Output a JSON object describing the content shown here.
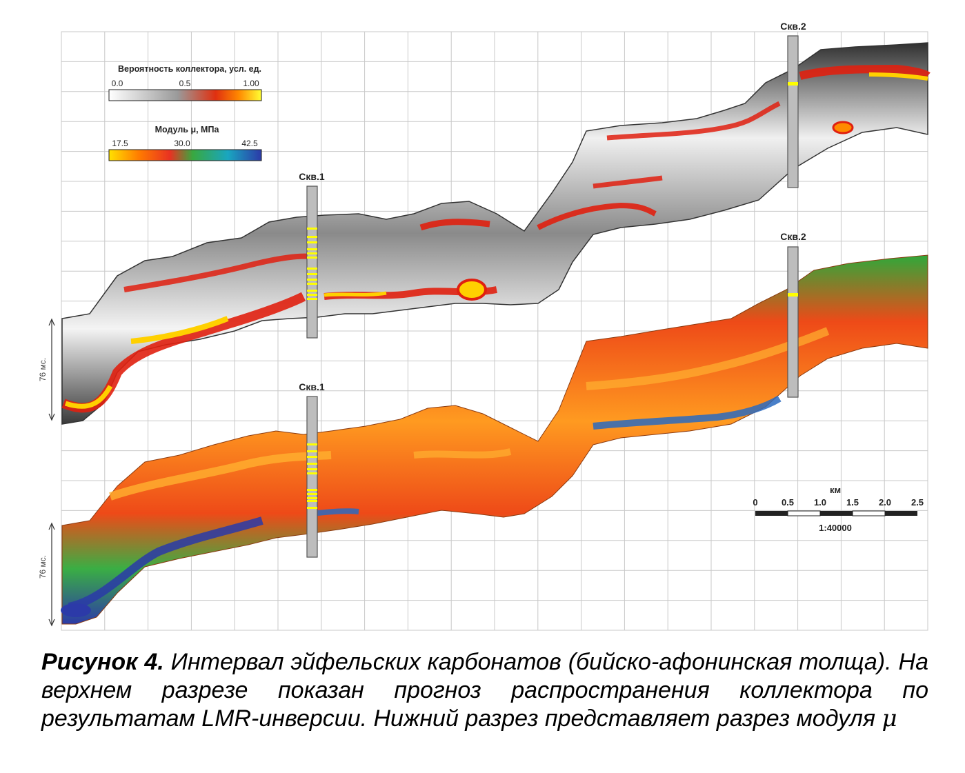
{
  "colors": {
    "grid": "#c8c8c8",
    "well_fill": "#bdbdbd",
    "well_stroke": "#555555",
    "well_highlight": "#ffff00"
  },
  "legend_probability": {
    "title": "Вероятность коллектора, усл. ед.",
    "ticks": [
      "0.0",
      "0.5",
      "1.00"
    ],
    "gradient": [
      "#ffffff",
      "#9a9a9a",
      "#e03010",
      "#ff8800",
      "#ffff33"
    ]
  },
  "legend_modulus": {
    "title": "Модуль μ, МПа",
    "ticks": [
      "17.5",
      "30.0",
      "42.5"
    ],
    "gradient": [
      "#ffe000",
      "#ff7a00",
      "#e83222",
      "#38a840",
      "#19a6c0",
      "#2c3aa8"
    ]
  },
  "wells": {
    "upper_well1": "Скв.1",
    "upper_well2": "Скв.2",
    "lower_well1": "Скв.1",
    "lower_well2": "Скв.2"
  },
  "time_scale": {
    "upper_label": "76 мс.",
    "lower_label": "76 мс."
  },
  "scale_bar": {
    "unit": "км",
    "ticks": [
      "0",
      "0.5",
      "1.0",
      "1.5",
      "2.0",
      "2.5"
    ],
    "ratio": "1:40000"
  },
  "caption": {
    "label": "Рисунок 4.",
    "text": " Интервал эйфельских карбонатов (бийско-афонинская толща). На верхнем разрезе показан прогноз распространения коллектора по результатам LMR-инверсии. Нижний разрез представляет разрез модуля ",
    "symbol": "μ"
  }
}
